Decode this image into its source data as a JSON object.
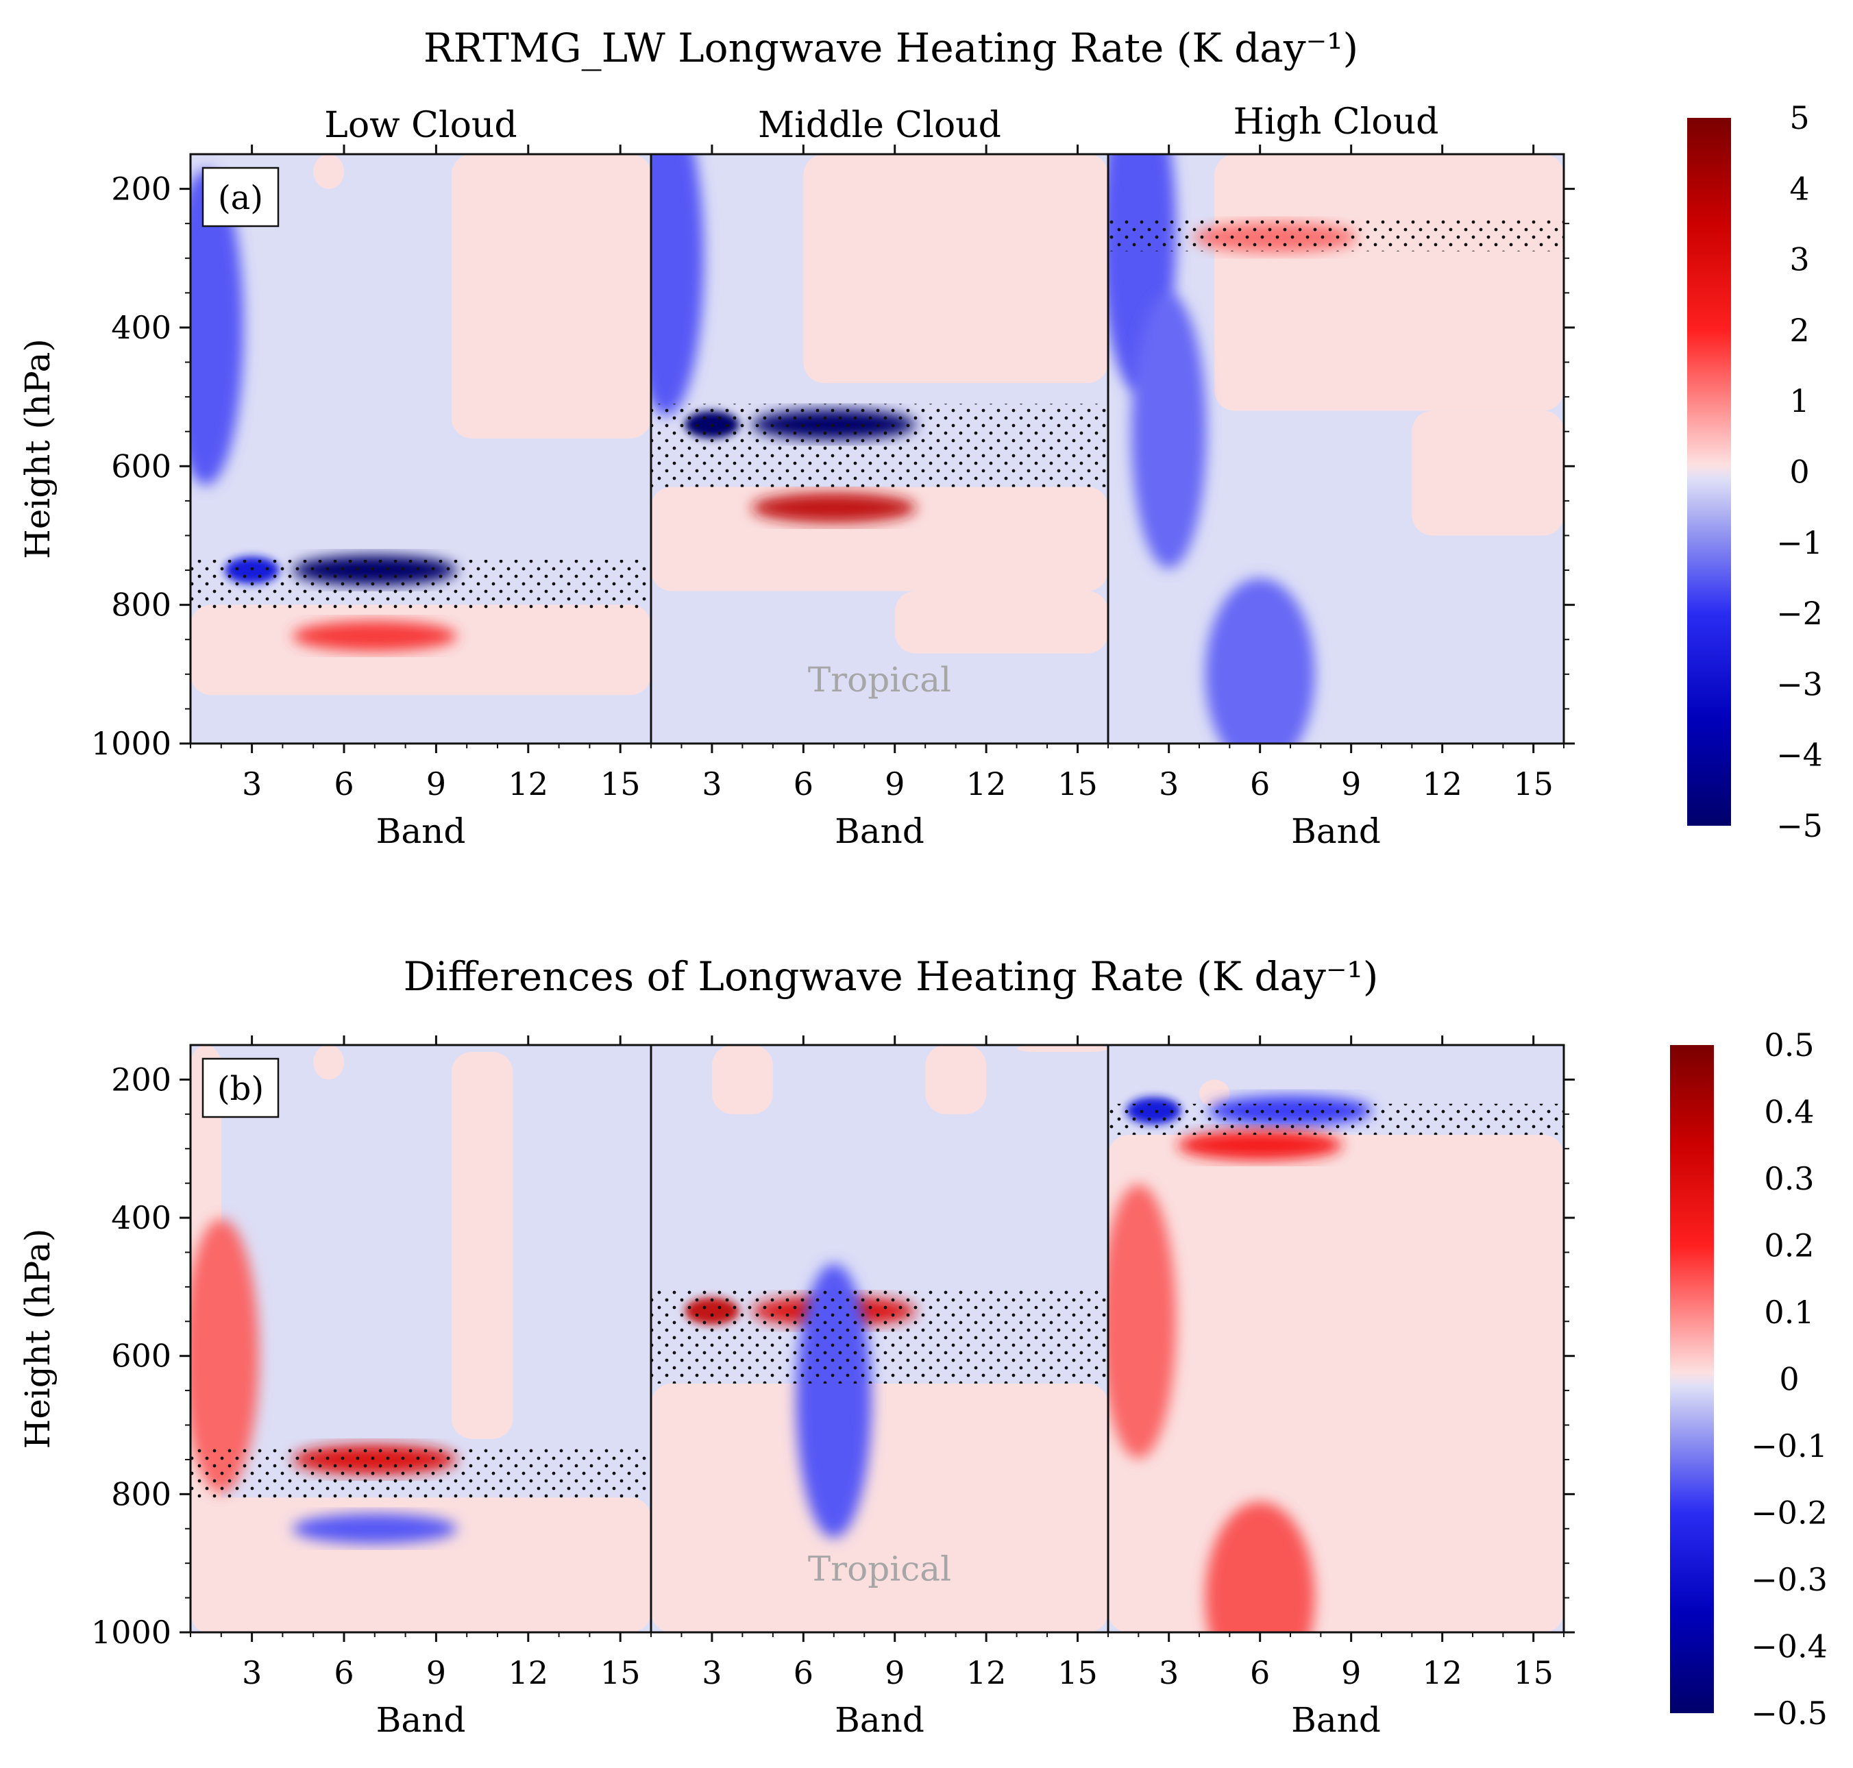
{
  "figure": {
    "title_top": "RRTMG_LW Longwave Heating Rate (K day⁻¹)",
    "title_bottom": "Differences of Longwave Heating Rate (K day⁻¹)"
  },
  "chart_data": [
    {
      "type": "heatmap",
      "panel_label": "(a)",
      "title": "RRTMG_LW Longwave Heating Rate (K day⁻¹)",
      "subpanels": [
        "Low Cloud",
        "Middle Cloud",
        "High Cloud"
      ],
      "xlabel": "Band",
      "ylabel": "Height (hPa)",
      "xticks": [
        3,
        6,
        9,
        12,
        15
      ],
      "xlim": [
        1,
        16
      ],
      "yticks": [
        200,
        400,
        600,
        800,
        1000
      ],
      "ylim": [
        150,
        1000
      ],
      "y_inverted": true,
      "annotation": "Tropical",
      "colorbar": {
        "min": -5,
        "max": 5,
        "ticks": [
          5,
          4,
          3,
          2,
          1,
          0,
          -1,
          -2,
          -3,
          -4,
          -5
        ]
      },
      "cloud_layers_hpa": [
        [
          735,
          810
        ],
        [
          510,
          630
        ],
        [
          245,
          290
        ]
      ],
      "features": [
        {
          "panel": "Low Cloud",
          "band": 3,
          "p": 750,
          "value": -3.0
        },
        {
          "panel": "Low Cloud",
          "band": 7,
          "p": 750,
          "value": -5.0
        },
        {
          "panel": "Low Cloud",
          "band": 7,
          "p": 845,
          "value": 2.0
        },
        {
          "panel": "Low Cloud",
          "band": 1.5,
          "p": 400,
          "value": -1.5
        },
        {
          "panel": "Middle Cloud",
          "band": 3,
          "p": 540,
          "value": -5.0
        },
        {
          "panel": "Middle Cloud",
          "band": 7,
          "p": 540,
          "value": -5.0
        },
        {
          "panel": "Middle Cloud",
          "band": 7,
          "p": 660,
          "value": 3.5
        },
        {
          "panel": "Middle Cloud",
          "band": 1.5,
          "p": 300,
          "value": -1.5
        },
        {
          "panel": "High Cloud",
          "band": 2,
          "p": 265,
          "value": -1.5
        },
        {
          "panel": "High Cloud",
          "band": 6.5,
          "p": 270,
          "value": 1.0
        },
        {
          "panel": "High Cloud",
          "band": 3,
          "p": 550,
          "value": -1.2
        },
        {
          "panel": "High Cloud",
          "band": 6,
          "p": 900,
          "value": -1.2
        }
      ]
    },
    {
      "type": "heatmap",
      "panel_label": "(b)",
      "title": "Differences of Longwave Heating Rate (K day⁻¹)",
      "subpanels": [
        "Low Cloud",
        "Middle Cloud",
        "High Cloud"
      ],
      "xlabel": "Band",
      "ylabel": "Height (hPa)",
      "xticks": [
        3,
        6,
        9,
        12,
        15
      ],
      "xlim": [
        1,
        16
      ],
      "yticks": [
        200,
        400,
        600,
        800,
        1000
      ],
      "ylim": [
        150,
        1000
      ],
      "y_inverted": true,
      "annotation": "Tropical",
      "colorbar": {
        "min": -0.5,
        "max": 0.5,
        "ticks": [
          "0.5",
          "0.4",
          "0.3",
          "0.2",
          "0.1",
          "0",
          "−0.1",
          "−0.2",
          "−0.3",
          "−0.4",
          "−0.5"
        ]
      },
      "cloud_layers_hpa": [
        [
          730,
          805
        ],
        [
          505,
          640
        ],
        [
          235,
          280
        ]
      ],
      "features": [
        {
          "panel": "Low Cloud",
          "band": 2,
          "p": 600,
          "value": 0.12
        },
        {
          "panel": "Low Cloud",
          "band": 7,
          "p": 750,
          "value": 0.3
        },
        {
          "panel": "Low Cloud",
          "band": 7,
          "p": 850,
          "value": -0.15
        },
        {
          "panel": "Middle Cloud",
          "band": 3,
          "p": 535,
          "value": 0.35
        },
        {
          "panel": "Middle Cloud",
          "band": 7,
          "p": 535,
          "value": 0.3
        },
        {
          "panel": "Middle Cloud",
          "band": 7,
          "p": 665,
          "value": -0.15
        },
        {
          "panel": "High Cloud",
          "band": 2.5,
          "p": 245,
          "value": -0.3
        },
        {
          "panel": "High Cloud",
          "band": 7,
          "p": 245,
          "value": -0.2
        },
        {
          "panel": "High Cloud",
          "band": 6,
          "p": 295,
          "value": 0.25
        },
        {
          "panel": "High Cloud",
          "band": 2,
          "p": 550,
          "value": 0.12
        },
        {
          "panel": "High Cloud",
          "band": 6,
          "p": 950,
          "value": 0.15
        }
      ]
    }
  ]
}
